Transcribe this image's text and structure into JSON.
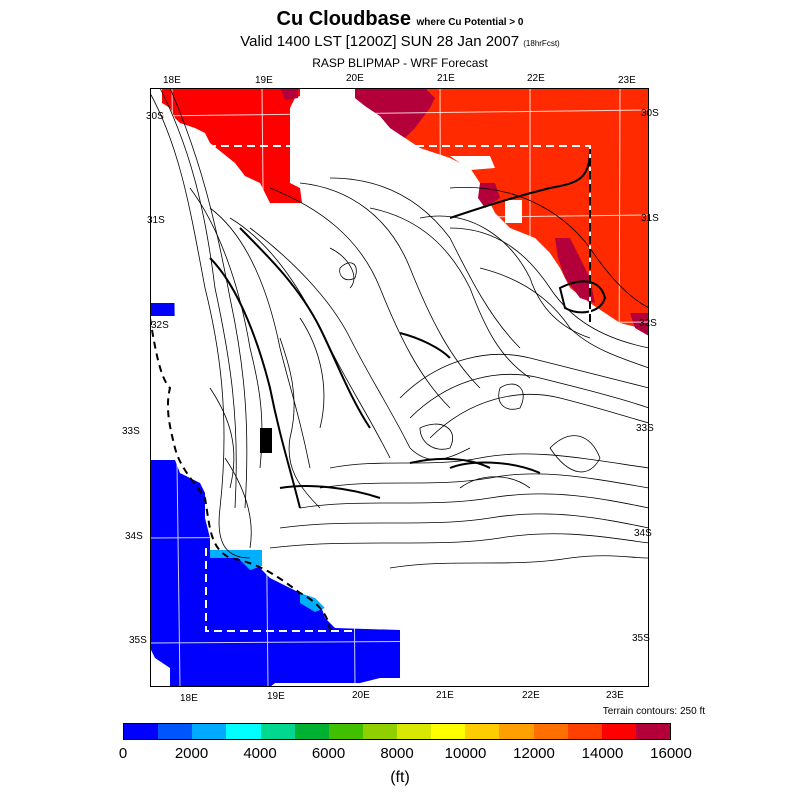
{
  "header": {
    "title": "Cu Cloudbase",
    "title_note": "where Cu Potential > 0",
    "valid": "Valid 1400 LST [1200Z] SUN 28 Jan 2007",
    "valid_note": "(18hrFcst)",
    "source": "RASP BLIPMAP - WRF Forecast"
  },
  "map": {
    "lon_top": [
      "18E",
      "19E",
      "20E",
      "21E",
      "22E",
      "23E"
    ],
    "lon_bottom": [
      "18E",
      "19E",
      "20E",
      "21E",
      "22E",
      "23E"
    ],
    "lat_left": [
      "30S",
      "31S",
      "32S",
      "33S",
      "34S",
      "35S"
    ],
    "lat_right": [
      "30S",
      "31S",
      "32S",
      "33S",
      "34S",
      "35S"
    ],
    "terrain_note": "Terrain contours: 250 ft",
    "colors": {
      "blue_ocean": "#0000ff",
      "red": "#ff0000",
      "orange_red": "#ff3300",
      "crimson": "#b3003b",
      "cyan": "#00b0ff"
    }
  },
  "colorbar": {
    "colors": [
      "#0000ff",
      "#0055ff",
      "#00aaff",
      "#00ffff",
      "#00d890",
      "#00b030",
      "#40c000",
      "#90d000",
      "#d8e800",
      "#ffff00",
      "#ffcc00",
      "#ffa000",
      "#ff7000",
      "#ff4000",
      "#ff0000",
      "#b3003b"
    ],
    "ticks": [
      "0",
      "2000",
      "4000",
      "6000",
      "8000",
      "10000",
      "12000",
      "14000",
      "16000"
    ],
    "unit": "(ft)"
  }
}
